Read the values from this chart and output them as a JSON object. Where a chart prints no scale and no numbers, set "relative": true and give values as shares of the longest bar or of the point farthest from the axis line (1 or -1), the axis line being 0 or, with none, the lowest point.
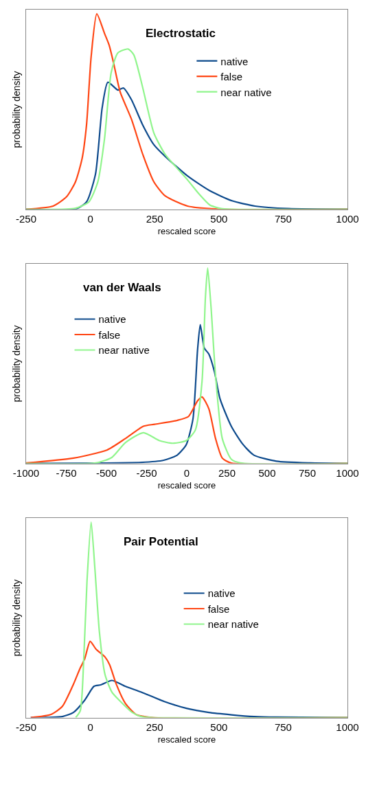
{
  "chart_data": [
    {
      "type": "line",
      "title": "Electrostatic",
      "xlabel": "rescaled score",
      "ylabel": "probability density",
      "relative": true,
      "xlim": [
        -250,
        1000
      ],
      "xticks": [
        -250,
        0,
        250,
        500,
        750,
        1000
      ],
      "legend": "top right",
      "marker": "none",
      "line_style": "solid",
      "series": [
        {
          "name": "native",
          "color": "#0d4a8c",
          "x": [
            -250,
            -58,
            -15,
            20,
            46,
            68,
            107,
            129,
            160,
            204,
            247,
            291,
            378,
            465,
            553,
            640,
            771,
            1000
          ],
          "values": [
            0,
            0,
            0.037,
            0.18,
            0.52,
            0.65,
            0.61,
            0.62,
            0.56,
            0.43,
            0.33,
            0.27,
            0.17,
            0.094,
            0.042,
            0.016,
            0.003,
            0
          ]
        },
        {
          "name": "false",
          "color": "#ff4513",
          "x": [
            -250,
            -145,
            -93,
            -58,
            -32,
            -15,
            3,
            25,
            55,
            73,
            90,
            116,
            160,
            204,
            247,
            291,
            378,
            509,
            1000
          ],
          "values": [
            0,
            0.016,
            0.063,
            0.14,
            0.26,
            0.43,
            0.78,
            1,
            0.9,
            0.84,
            0.75,
            0.6,
            0.46,
            0.28,
            0.14,
            0.068,
            0.016,
            0,
            0
          ]
        },
        {
          "name": "near native",
          "color": "#90f58c",
          "x": [
            -250,
            -58,
            -6,
            29,
            55,
            81,
            107,
            147,
            169,
            204,
            247,
            291,
            334,
            378,
            422,
            465,
            509,
            553,
            1000
          ],
          "values": [
            0,
            0.005,
            0.037,
            0.14,
            0.36,
            0.7,
            0.8,
            0.82,
            0.79,
            0.62,
            0.39,
            0.28,
            0.215,
            0.15,
            0.079,
            0.021,
            0.003,
            0,
            0
          ]
        }
      ]
    },
    {
      "type": "line",
      "title": "van der Waals",
      "xlabel": "rescaled score",
      "ylabel": "probability density",
      "relative": true,
      "xlim": [
        -1000,
        1000
      ],
      "xticks": [
        -1000,
        -750,
        -500,
        -250,
        0,
        250,
        500,
        750,
        1000
      ],
      "legend": "top left",
      "marker": "none",
      "line_style": "solid",
      "series": [
        {
          "name": "native",
          "color": "#0d4a8c",
          "x": [
            -1000,
            -284,
            -144,
            -60,
            -3,
            39,
            67,
            84,
            109,
            137,
            172,
            207,
            277,
            347,
            418,
            558,
            768,
            1000
          ],
          "values": [
            0,
            0.005,
            0.016,
            0.042,
            0.096,
            0.23,
            0.58,
            0.71,
            0.59,
            0.56,
            0.47,
            0.33,
            0.19,
            0.1,
            0.042,
            0.011,
            0.002,
            0
          ]
        },
        {
          "name": "false",
          "color": "#ff4513",
          "x": [
            -1000,
            -705,
            -495,
            -382,
            -270,
            -200,
            -60,
            11,
            67,
            95,
            137,
            179,
            221,
            277,
            1000
          ],
          "values": [
            0.002,
            0.027,
            0.069,
            0.127,
            0.19,
            0.2,
            0.22,
            0.24,
            0.32,
            0.34,
            0.28,
            0.127,
            0.027,
            0.002,
            0
          ]
        },
        {
          "name": "near native",
          "color": "#90f58c",
          "x": [
            -1000,
            -565,
            -467,
            -382,
            -270,
            -172,
            -88,
            -3,
            53,
            95,
            116,
            130,
            151,
            179,
            221,
            277,
            333,
            1000
          ],
          "values": [
            0,
            0.002,
            0.03,
            0.106,
            0.157,
            0.117,
            0.103,
            0.117,
            0.17,
            0.42,
            0.85,
            1,
            0.8,
            0.45,
            0.127,
            0.021,
            0.002,
            0
          ]
        }
      ]
    },
    {
      "type": "line",
      "title": "Pair Potential",
      "xlabel": "rescaled score",
      "ylabel": "probability density",
      "relative": true,
      "xlim": [
        -250,
        1000
      ],
      "xticks": [
        -250,
        0,
        250,
        500,
        750,
        1000
      ],
      "legend": "right",
      "marker": "none",
      "line_style": "solid",
      "series": [
        {
          "name": "native",
          "color": "#0d4a8c",
          "x": [
            -232,
            -109,
            -66,
            -22,
            14,
            40,
            84,
            136,
            198,
            286,
            374,
            461,
            549,
            637,
            725,
            1000
          ],
          "values": [
            0,
            0.005,
            0.026,
            0.089,
            0.16,
            0.167,
            0.19,
            0.16,
            0.13,
            0.083,
            0.047,
            0.026,
            0.014,
            0.005,
            0.002,
            0
          ]
        },
        {
          "name": "false",
          "color": "#ff4513",
          "x": [
            -232,
            -153,
            -109,
            -66,
            -39,
            -22,
            -1,
            22,
            57,
            75,
            101,
            136,
            180,
            242,
            1000
          ],
          "values": [
            0,
            0.016,
            0.057,
            0.17,
            0.255,
            0.3,
            0.39,
            0.35,
            0.31,
            0.27,
            0.17,
            0.073,
            0.014,
            0,
            0
          ]
        },
        {
          "name": "near native",
          "color": "#90f58c",
          "x": [
            -57,
            -39,
            -26,
            -13,
            3,
            18,
            35,
            57,
            84,
            128,
            163,
            198,
            242,
            1000
          ],
          "values": [
            0,
            0.036,
            0.29,
            0.7,
            1,
            0.755,
            0.44,
            0.22,
            0.13,
            0.068,
            0.026,
            0.005,
            0,
            0
          ]
        }
      ]
    }
  ]
}
